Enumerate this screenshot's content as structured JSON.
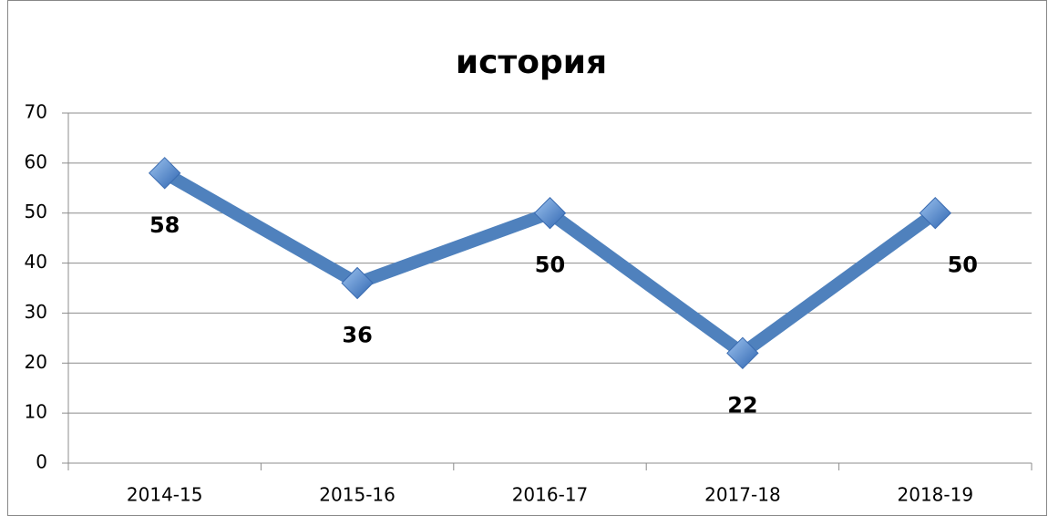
{
  "chart_data": {
    "type": "line",
    "title": "история",
    "categories": [
      "2014-15",
      "2015-16",
      "2016-17",
      "2017-18",
      "2018-19"
    ],
    "values": [
      58,
      36,
      50,
      22,
      50
    ],
    "color": "#4f81bd",
    "ylim": [
      0,
      70
    ],
    "yticks": [
      0,
      10,
      20,
      30,
      40,
      50,
      60,
      70
    ],
    "grid": true
  }
}
